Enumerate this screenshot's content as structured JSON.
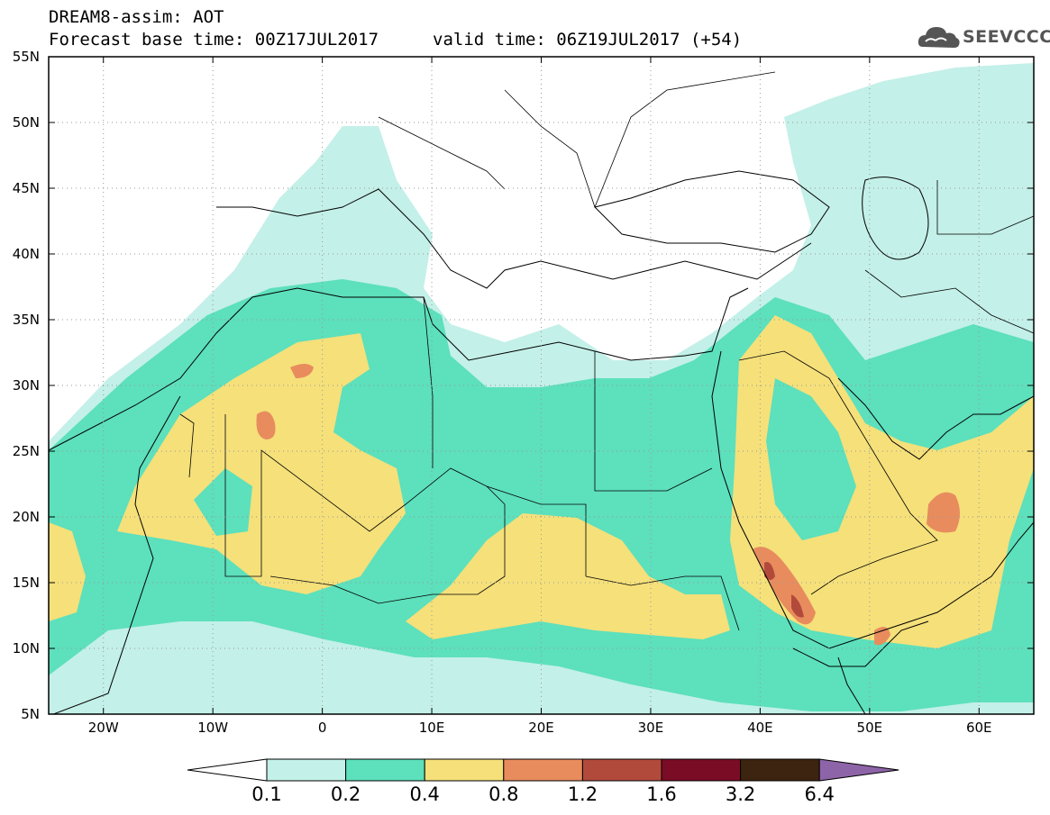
{
  "title": {
    "line1": "DREAM8-assim: AOT",
    "base": "Forecast base time: 00Z17JUL2017",
    "valid": "valid time: 06Z19JUL2017 (+54)"
  },
  "logo": {
    "icon": "cloud-icon",
    "text": "SEEVCCC"
  },
  "map": {
    "extent": {
      "lon": [
        -25,
        65
      ],
      "lat": [
        5,
        55
      ]
    },
    "lat_ticks": [
      "55N",
      "50N",
      "45N",
      "40N",
      "35N",
      "30N",
      "25N",
      "20N",
      "15N",
      "10N",
      "5N"
    ],
    "lon_ticks": [
      "20W",
      "10W",
      "0",
      "10E",
      "20E",
      "30E",
      "40E",
      "50E",
      "60E"
    ],
    "grid": true
  },
  "colorbar": {
    "levels": [
      "0.1",
      "0.2",
      "0.4",
      "0.8",
      "1.2",
      "1.6",
      "3.2",
      "6.4"
    ],
    "colors": [
      "#c3f0e8",
      "#5de0bc",
      "#f5e07a",
      "#e88c5e",
      "#b24a3c",
      "#7a0c26",
      "#3d2410",
      "#8e64a8"
    ],
    "under_color": "#ffffff"
  }
}
